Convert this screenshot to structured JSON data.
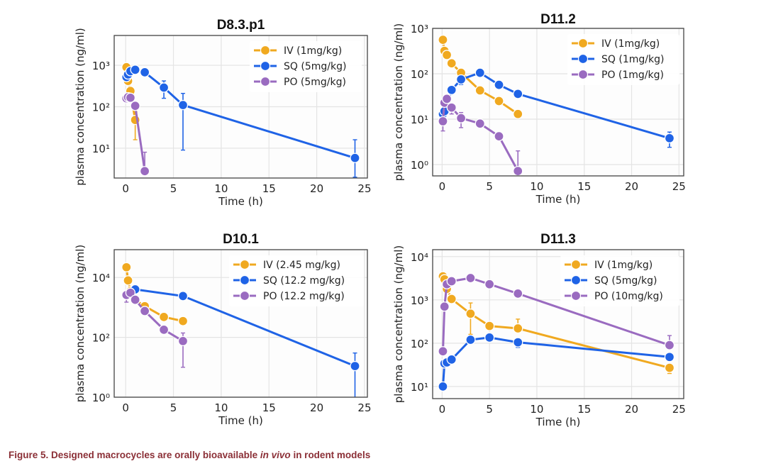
{
  "figure": {
    "caption_prefix": "Figure 5.  Designed macrocycles are orally bioavailable ",
    "caption_italic": "in vivo",
    "caption_suffix": " in rodent models",
    "caption_color": "#8b2f36"
  },
  "colors": {
    "IV": "#f0a920",
    "SQ": "#1f63e6",
    "PO": "#9a6bc0"
  },
  "chart_data": [
    {
      "type": "line",
      "title": "D8.3.p1",
      "xlabel": "Time (h)",
      "ylabel": "plasma concentration (ng/ml)",
      "yscale": "log",
      "xlim": [
        -1.2,
        25.3
      ],
      "ylim_log10": [
        0.28,
        3.72
      ],
      "xticks": [
        0,
        5,
        10,
        15,
        20,
        25
      ],
      "yticks_log10": [
        1,
        2,
        3
      ],
      "grid": true,
      "legend": "top-right",
      "series": [
        {
          "name": "IV (1mg/kg)",
          "key": "IV",
          "x": [
            0.083,
            0.25,
            0.5,
            1
          ],
          "y": [
            900,
            420,
            240,
            48
          ],
          "err_low": [
            null,
            null,
            null,
            16
          ],
          "err_high": [
            null,
            null,
            null,
            75
          ]
        },
        {
          "name": "SQ (5mg/kg)",
          "key": "SQ",
          "x": [
            0.083,
            0.25,
            0.5,
            1,
            2,
            4,
            6,
            24
          ],
          "y": [
            520,
            600,
            720,
            780,
            680,
            290,
            110,
            5.8
          ],
          "err_low": [
            null,
            null,
            null,
            null,
            null,
            160,
            9,
            2
          ],
          "err_high": [
            null,
            null,
            null,
            null,
            null,
            420,
            210,
            16
          ]
        },
        {
          "name": "PO (5mg/kg)",
          "key": "PO",
          "x": [
            0.083,
            0.25,
            0.5,
            1,
            2
          ],
          "y": [
            160,
            170,
            165,
            105,
            2.8
          ],
          "err_low": [
            null,
            null,
            null,
            null,
            null
          ],
          "err_high": [
            null,
            null,
            null,
            null,
            8
          ]
        }
      ]
    },
    {
      "type": "line",
      "title": "D11.2",
      "xlabel": "Time (h)",
      "ylabel": "plasma concentration (ng/ml)",
      "yscale": "log",
      "xlim": [
        -1.0,
        25.5
      ],
      "ylim_log10": [
        -0.25,
        3.0
      ],
      "xticks": [
        0,
        5,
        10,
        15,
        20,
        25
      ],
      "yticks_log10": [
        0,
        1,
        2,
        3
      ],
      "grid": true,
      "legend": "top-right",
      "series": [
        {
          "name": "IV (1mg/kg)",
          "key": "IV",
          "x": [
            0.083,
            0.25,
            0.5,
            1,
            2,
            4,
            6,
            8
          ],
          "y": [
            560,
            320,
            260,
            170,
            105,
            43,
            25,
            13
          ],
          "err_low": [
            null,
            null,
            null,
            null,
            null,
            null,
            null,
            null
          ],
          "err_high": [
            null,
            null,
            null,
            null,
            null,
            null,
            null,
            null
          ]
        },
        {
          "name": "SQ (1mg/kg)",
          "key": "SQ",
          "x": [
            0.083,
            0.25,
            1,
            2,
            4,
            6,
            8,
            24
          ],
          "y": [
            13,
            15,
            44,
            75,
            105,
            57,
            36,
            3.8
          ],
          "err_low": [
            null,
            null,
            null,
            58,
            null,
            null,
            null,
            2.4
          ],
          "err_high": [
            null,
            null,
            null,
            null,
            null,
            null,
            null,
            5.2
          ]
        },
        {
          "name": "PO (1mg/kg)",
          "key": "PO",
          "x": [
            0.083,
            0.25,
            0.5,
            1,
            2,
            4,
            6,
            8
          ],
          "y": [
            9,
            23,
            28,
            18,
            10.5,
            8,
            4.2,
            0.72
          ],
          "err_low": [
            5.5,
            null,
            null,
            13,
            6.5,
            null,
            null,
            null
          ],
          "err_high": [
            null,
            null,
            null,
            null,
            14,
            null,
            null,
            2.0
          ]
        }
      ]
    },
    {
      "type": "line",
      "title": "D10.1",
      "xlabel": "Time (h)",
      "ylabel": "plasma concentration (ng/ml)",
      "yscale": "log",
      "xlim": [
        -1.2,
        25.3
      ],
      "ylim_log10": [
        0,
        4.93
      ],
      "xticks": [
        0,
        5,
        10,
        15,
        20,
        25
      ],
      "yticks_log10": [
        0,
        2,
        4
      ],
      "grid": true,
      "legend": "top-right",
      "series": [
        {
          "name": "IV (2.45 mg/kg)",
          "key": "IV",
          "x": [
            0.083,
            0.25,
            0.5,
            1,
            2,
            4,
            6
          ],
          "y": [
            22000,
            8000,
            3500,
            1800,
            1100,
            480,
            350
          ],
          "err_low": [
            null,
            null,
            null,
            null,
            null,
            null,
            null
          ],
          "err_high": [
            null,
            null,
            null,
            null,
            null,
            null,
            null
          ]
        },
        {
          "name": "SQ (12.2 mg/kg)",
          "key": "SQ",
          "x": [
            1,
            6,
            24
          ],
          "y": [
            4000,
            2400,
            11
          ],
          "err_low": [
            null,
            null,
            1
          ],
          "err_high": [
            null,
            null,
            30
          ]
        },
        {
          "name": "PO (12.2 mg/kg)",
          "key": "PO",
          "x": [
            0.083,
            0.5,
            1,
            2,
            4,
            6
          ],
          "y": [
            2600,
            3100,
            1800,
            760,
            180,
            75
          ],
          "err_low": [
            1500,
            null,
            null,
            null,
            null,
            10
          ],
          "err_high": [
            null,
            null,
            null,
            null,
            null,
            140
          ]
        }
      ]
    },
    {
      "type": "line",
      "title": "D11.3",
      "xlabel": "Time (h)",
      "ylabel": "plasma concentration (ng/ml)",
      "yscale": "log",
      "xlim": [
        -1.0,
        25.5
      ],
      "ylim_log10": [
        0.72,
        4.16
      ],
      "xticks": [
        0,
        5,
        10,
        15,
        20,
        25
      ],
      "yticks_log10": [
        1,
        2,
        3,
        4
      ],
      "grid": true,
      "legend": "top-right",
      "series": [
        {
          "name": "IV (1mg/kg)",
          "key": "IV",
          "x": [
            0.083,
            0.25,
            0.5,
            1,
            3,
            5,
            8,
            24
          ],
          "y": [
            3500,
            3000,
            1800,
            1050,
            480,
            250,
            220,
            27
          ],
          "err_low": [
            null,
            null,
            null,
            null,
            160,
            null,
            null,
            20
          ],
          "err_high": [
            null,
            null,
            null,
            null,
            850,
            null,
            360,
            null
          ]
        },
        {
          "name": "SQ (5mg/kg)",
          "key": "SQ",
          "x": [
            0.083,
            0.25,
            0.5,
            1,
            3,
            5,
            8,
            24
          ],
          "y": [
            10,
            34,
            36,
            42,
            120,
            135,
            105,
            48
          ],
          "err_low": [
            null,
            null,
            null,
            null,
            null,
            null,
            80,
            null
          ],
          "err_high": [
            null,
            null,
            null,
            null,
            null,
            null,
            null,
            null
          ]
        },
        {
          "name": "PO (10mg/kg)",
          "key": "PO",
          "x": [
            0.083,
            0.25,
            0.5,
            1,
            3,
            5,
            8,
            24
          ],
          "y": [
            65,
            700,
            2300,
            2700,
            3200,
            2300,
            1400,
            90
          ],
          "err_low": [
            null,
            null,
            null,
            null,
            null,
            null,
            null,
            null
          ],
          "err_high": [
            null,
            null,
            null,
            null,
            null,
            null,
            null,
            150
          ]
        }
      ]
    }
  ]
}
